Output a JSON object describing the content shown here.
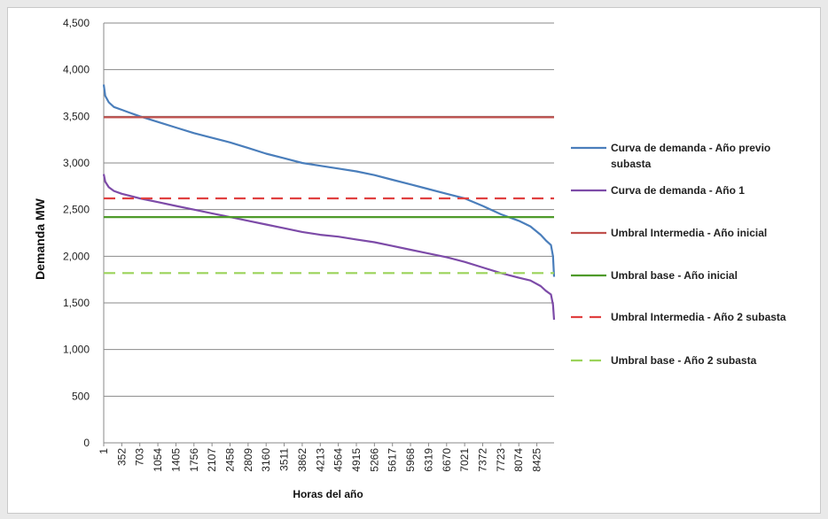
{
  "chart_data": {
    "type": "line",
    "xlabel": "Horas del año",
    "ylabel": "Demanda MW",
    "ylim": [
      0,
      4500
    ],
    "y_ticks": [
      "0",
      "500",
      "1,000",
      "1,500",
      "2,000",
      "2,500",
      "3,000",
      "3,500",
      "4,000",
      "4,500"
    ],
    "x_tick_labels": [
      "1",
      "352",
      "703",
      "1054",
      "1405",
      "1756",
      "2107",
      "2458",
      "2809",
      "3160",
      "3511",
      "3862",
      "4213",
      "4564",
      "4915",
      "5266",
      "5617",
      "5968",
      "6319",
      "6670",
      "7021",
      "7372",
      "7723",
      "8074",
      "8425"
    ],
    "xlim": [
      1,
      8760
    ],
    "grid": "horizontal",
    "legend_position": "right",
    "series": [
      {
        "name": "Curva de demanda - Año previo subasta",
        "style": "solid",
        "color": "#4a7ebb",
        "x": [
          1,
          30,
          100,
          200,
          352,
          500,
          703,
          1054,
          1405,
          1756,
          2107,
          2458,
          2809,
          3160,
          3511,
          3862,
          4213,
          4564,
          4915,
          5266,
          5617,
          5968,
          6319,
          6670,
          7021,
          7372,
          7723,
          8074,
          8300,
          8500,
          8600,
          8700,
          8740,
          8760
        ],
        "y": [
          3840,
          3720,
          3650,
          3600,
          3570,
          3540,
          3500,
          3440,
          3380,
          3320,
          3270,
          3220,
          3160,
          3100,
          3050,
          3000,
          2970,
          2940,
          2910,
          2870,
          2820,
          2770,
          2720,
          2670,
          2620,
          2540,
          2450,
          2380,
          2320,
          2230,
          2170,
          2120,
          2000,
          1780
        ]
      },
      {
        "name": "Curva de demanda - Año 1",
        "style": "solid",
        "color": "#7d4ba8",
        "x": [
          1,
          30,
          100,
          200,
          352,
          500,
          703,
          1054,
          1405,
          1756,
          2107,
          2458,
          2809,
          3160,
          3511,
          3862,
          4213,
          4564,
          4915,
          5266,
          5617,
          5968,
          6319,
          6670,
          7021,
          7372,
          7723,
          8074,
          8300,
          8500,
          8600,
          8700,
          8740,
          8760
        ],
        "y": [
          2880,
          2800,
          2740,
          2700,
          2670,
          2650,
          2620,
          2580,
          2540,
          2500,
          2460,
          2420,
          2380,
          2340,
          2300,
          2260,
          2230,
          2210,
          2180,
          2150,
          2110,
          2070,
          2030,
          1990,
          1940,
          1880,
          1820,
          1770,
          1740,
          1680,
          1630,
          1590,
          1480,
          1320
        ]
      },
      {
        "name": "Umbral Intermedia - Año inicial",
        "style": "solid",
        "color": "#c0504d",
        "x": [
          1,
          8760
        ],
        "y": [
          3490,
          3490
        ]
      },
      {
        "name": "Umbral base - Año inicial",
        "style": "solid",
        "color": "#4e9a2a",
        "x": [
          1,
          8760
        ],
        "y": [
          2420,
          2420
        ]
      },
      {
        "name": "Umbral Intermedia - Año 2 subasta",
        "style": "dashed",
        "color": "#e04040",
        "x": [
          1,
          8760
        ],
        "y": [
          2620,
          2620
        ]
      },
      {
        "name": "Umbral base - Año 2 subasta",
        "style": "dashed",
        "color": "#9bd35a",
        "x": [
          1,
          8760
        ],
        "y": [
          1820,
          1820
        ]
      }
    ],
    "legend": [
      {
        "line1": "Curva de demanda - Año previo",
        "line2": "subasta"
      },
      {
        "line1": "Curva de demanda - Año 1",
        "line2": ""
      },
      {
        "line1": "Umbral Intermedia - Año inicial",
        "line2": ""
      },
      {
        "line1": "Umbral base - Año inicial",
        "line2": ""
      },
      {
        "line1": "Umbral Intermedia - Año 2 subasta",
        "line2": ""
      },
      {
        "line1": "Umbral base - Año 2 subasta",
        "line2": ""
      }
    ]
  }
}
